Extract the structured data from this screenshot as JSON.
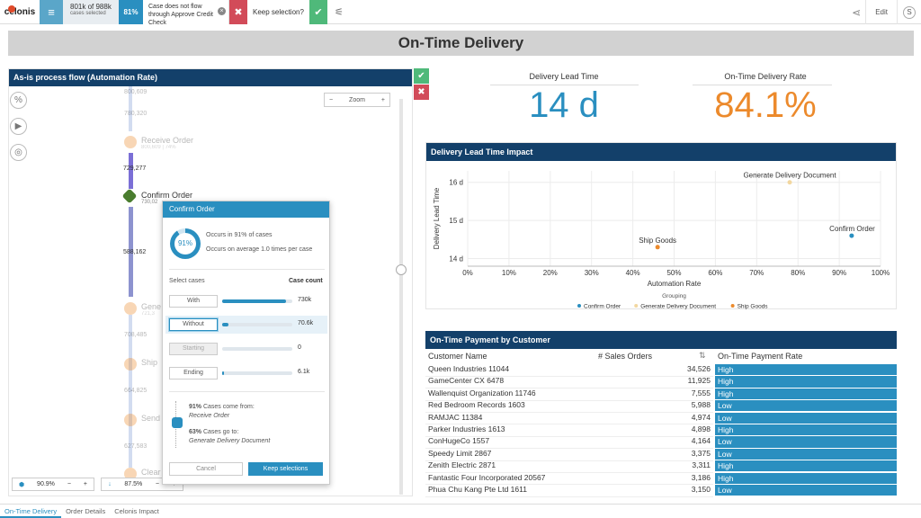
{
  "topbar": {
    "logo": "celonis",
    "cases_count": "801k of 988k",
    "cases_caption": "cases selected",
    "pct_badge": "81%",
    "filter_text": "Case does not flow through Approve Credit Check",
    "keep_selection": "Keep selection?",
    "edit_label": "Edit",
    "avatar_initial": "S"
  },
  "title": "On-Time Delivery",
  "process": {
    "header": "As-is process flow (Automation Rate)",
    "zoom_label": "Zoom",
    "nodes": {
      "receive_order": "Receive Order",
      "receive_order_sub": "800,609 | 74%",
      "confirm_order": "Confirm Order",
      "confirm_order_sub": "730,02",
      "gene": "Gene",
      "gene_sub": "721,3",
      "ship": "Ship",
      "send": "Send",
      "clear": "Clear"
    },
    "edges": {
      "e_top": "800,609",
      "e1": "780,320",
      "e2": "729,277",
      "e3": "588,162",
      "e4": "708,485",
      "e5": "664,825",
      "e6": "627,583"
    },
    "bottom_left_val": "90.9%",
    "bottom_right_val": "87.5%"
  },
  "popup": {
    "title": "Confirm Order",
    "donut_pct": "91%",
    "occurs_cases": "Occurs in 91% of cases",
    "occurs_avg": "Occurs on average 1.0 times per case",
    "select_cases": "Select cases",
    "case_count": "Case count",
    "rows": [
      {
        "label": "With",
        "value": "730k",
        "fill": 0.91
      },
      {
        "label": "Without",
        "value": "70.6k",
        "fill": 0.09
      },
      {
        "label": "Starting",
        "value": "0",
        "fill": 0
      },
      {
        "label": "Ending",
        "value": "6.1k",
        "fill": 0.01
      }
    ],
    "from_pct": "91%",
    "from_text": "Cases come from:",
    "from_activity": "Receive Order",
    "to_pct": "63%",
    "to_text": "Cases go to:",
    "to_activity": "Generate Delivery Document",
    "cancel": "Cancel",
    "keep": "Keep selections"
  },
  "kpis": [
    {
      "title": "Delivery Lead Time",
      "value": "14 d",
      "color": "#2a8fc0"
    },
    {
      "title": "On-Time Delivery Rate",
      "value": "84.1%",
      "color": "#ec8a2c"
    }
  ],
  "chart_title": "Delivery Lead Time Impact",
  "chart_data": {
    "type": "scatter",
    "title": "Delivery Lead Time Impact",
    "xlabel": "Automation Rate",
    "ylabel": "Delivery Lead Time",
    "xlim": [
      0,
      100
    ],
    "ylim": [
      13.8,
      16.3
    ],
    "x_ticks": [
      "0%",
      "10%",
      "20%",
      "30%",
      "40%",
      "50%",
      "60%",
      "70%",
      "80%",
      "90%",
      "100%"
    ],
    "y_ticks": [
      "14 d",
      "15 d",
      "16 d"
    ],
    "legend_title": "Grouping",
    "series": [
      {
        "name": "Confirm Order",
        "color": "#2a8fc0",
        "x": [
          93
        ],
        "y": [
          14.6
        ]
      },
      {
        "name": "Generate Delivery Document",
        "color": "#f2d7a0",
        "x": [
          78
        ],
        "y": [
          16.0
        ]
      },
      {
        "name": "Ship Goods",
        "color": "#ec8a2c",
        "x": [
          46
        ],
        "y": [
          14.3
        ]
      }
    ],
    "grid": true,
    "legend_position": "bottom"
  },
  "table": {
    "title": "On-Time Payment by Customer",
    "columns": [
      "Customer Name",
      "# Sales Orders",
      "On-Time Payment Rate"
    ],
    "rows": [
      [
        "Queen Industries 11044",
        "34,526",
        "High"
      ],
      [
        "GameCenter CX 6478",
        "11,925",
        "High"
      ],
      [
        "Wallenquist Organization 11746",
        "7,555",
        "High"
      ],
      [
        "Red Bedroom Records 1603",
        "5,988",
        "Low"
      ],
      [
        "RAMJAC 11384",
        "4,974",
        "Low"
      ],
      [
        "Parker Industries 1613",
        "4,898",
        "High"
      ],
      [
        "ConHugeCo 1557",
        "4,164",
        "Low"
      ],
      [
        "Speedy Limit 2867",
        "3,375",
        "Low"
      ],
      [
        "Zenith Electric 2871",
        "3,311",
        "High"
      ],
      [
        "Fantastic Four Incorporated 20567",
        "3,186",
        "High"
      ],
      [
        "Phua Chu Kang Pte Ltd 1611",
        "3,150",
        "Low"
      ]
    ]
  },
  "tabs": [
    "On-Time Delivery",
    "Order Details",
    "Celonis Impact"
  ]
}
